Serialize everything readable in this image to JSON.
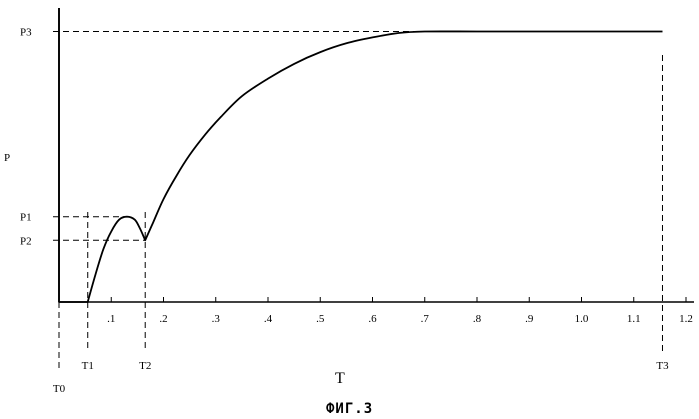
{
  "chart_data": {
    "type": "line",
    "xlabel": "T",
    "ylabel": "P",
    "caption": "ФИГ.3",
    "xlim": [
      0,
      1.2
    ],
    "x_ticks": [
      {
        "value": 0.1,
        "label": ".1"
      },
      {
        "value": 0.2,
        "label": ".2"
      },
      {
        "value": 0.3,
        "label": ".3"
      },
      {
        "value": 0.4,
        "label": ".4"
      },
      {
        "value": 0.5,
        "label": ".5"
      },
      {
        "value": 0.6,
        "label": ".6"
      },
      {
        "value": 0.7,
        "label": ".7"
      },
      {
        "value": 0.8,
        "label": ".8"
      },
      {
        "value": 0.9,
        "label": ".9"
      },
      {
        "value": 1.0,
        "label": "1.0"
      },
      {
        "value": 1.1,
        "label": "1.1"
      },
      {
        "value": 1.2,
        "label": "1.2"
      }
    ],
    "time_markers": [
      {
        "label": "T0",
        "x": 0.0
      },
      {
        "label": "T1",
        "x": 0.055
      },
      {
        "label": "T2",
        "x": 0.165
      },
      {
        "label": "T3",
        "x": 1.155
      }
    ],
    "levels": [
      {
        "label": "P1",
        "y": 0.29
      },
      {
        "label": "P2",
        "y": 0.21
      },
      {
        "label": "P3",
        "y": 0.92
      }
    ],
    "ylim": [
      0,
      1.0
    ],
    "grid": false,
    "legend": "none",
    "series": [
      {
        "x": [
          0.0,
          0.0,
          0.055,
          0.07,
          0.085,
          0.1,
          0.115,
          0.13,
          0.145,
          0.155,
          0.165,
          0.18,
          0.2,
          0.225,
          0.25,
          0.28,
          0.31,
          0.35,
          0.4,
          0.45,
          0.5,
          0.55,
          0.6,
          0.65,
          0.7,
          0.8,
          0.9,
          1.0,
          1.1,
          1.155
        ],
        "y": [
          1.0,
          0.0,
          0.0,
          0.095,
          0.18,
          0.24,
          0.28,
          0.29,
          0.28,
          0.25,
          0.21,
          0.27,
          0.35,
          0.43,
          0.5,
          0.57,
          0.63,
          0.7,
          0.76,
          0.81,
          0.85,
          0.88,
          0.9,
          0.915,
          0.92,
          0.92,
          0.92,
          0.92,
          0.92,
          0.92
        ]
      }
    ]
  }
}
